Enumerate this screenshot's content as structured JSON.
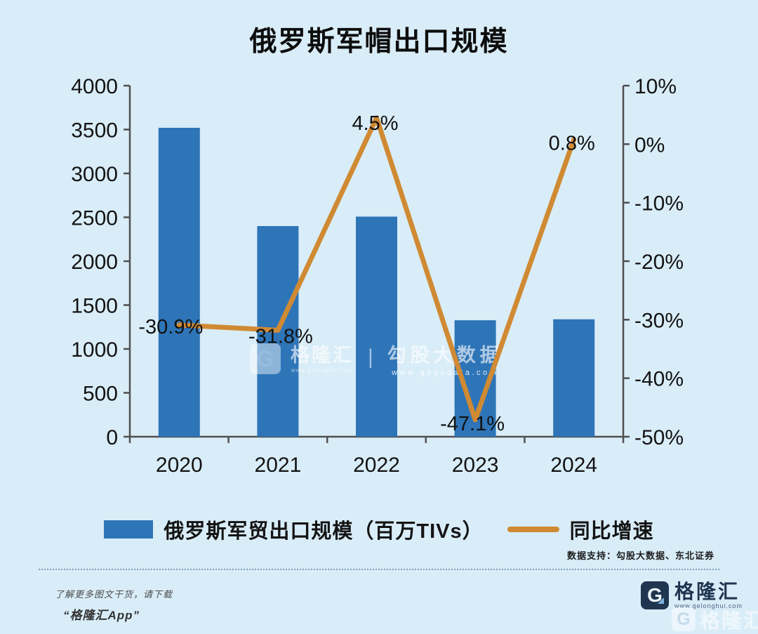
{
  "title": "俄罗斯军帽出口规模",
  "colors": {
    "background": "#d9edf8",
    "bar": "#2e75b8",
    "line": "#d08a33",
    "axis": "#4f4f4f",
    "text": "#131313",
    "brand_navy": "#1f3550"
  },
  "chart_data": {
    "type": "bar",
    "categories": [
      "2020",
      "2021",
      "2022",
      "2023",
      "2024"
    ],
    "series": [
      {
        "name": "俄罗斯军贸出口规模（百万TIVs）",
        "type": "bar",
        "axis": "left",
        "values": [
          3520,
          2400,
          2508,
          1327,
          1338
        ]
      },
      {
        "name": "同比增速",
        "type": "line",
        "axis": "right",
        "values": [
          -30.9,
          -31.8,
          4.5,
          -47.1,
          0.8
        ],
        "labels": [
          "-30.9%",
          "-31.8%",
          "4.5%",
          "-47.1%",
          "0.8%"
        ]
      }
    ],
    "left_axis": {
      "min": 0,
      "max": 4000,
      "step": 500,
      "ticks": [
        "4000",
        "3500",
        "3000",
        "2500",
        "2000",
        "1500",
        "1000",
        "500",
        "0"
      ]
    },
    "right_axis": {
      "min": -50,
      "max": 10,
      "step": 10,
      "ticks": [
        "10%",
        "0%",
        "-10%",
        "-20%",
        "-30%",
        "-40%",
        "-50%"
      ]
    },
    "grid": false,
    "legend_position": "bottom",
    "title": "俄罗斯军帽出口规模"
  },
  "legend": {
    "bar_label": "俄罗斯军贸出口规模（百万TIVs）",
    "line_label": "同比增速"
  },
  "watermark_center": {
    "logo_letter": "G",
    "brand": "格隆汇",
    "brand_url": "www.gelonghui.com",
    "divider": "|",
    "name": "勾股大数据",
    "name_url": "www.gogudata.com"
  },
  "source_note": "数据支持：勾股大数据、东北证券",
  "footer": {
    "promo_line1": "了解更多图文干货，请下载",
    "promo_line2": "“格隆汇App”",
    "logo_letter": "G",
    "brand": "格隆汇",
    "brand_url": "www.gelonghui.com"
  },
  "watermark_corner": {
    "logo_letter": "G",
    "brand": "格隆汇"
  }
}
